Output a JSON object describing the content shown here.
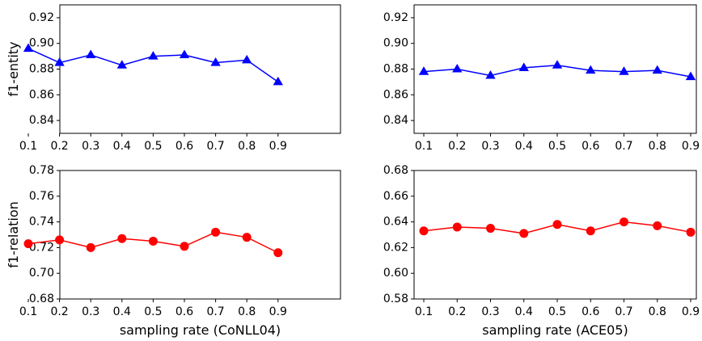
{
  "chart_data": [
    {
      "id": "conll-entity",
      "type": "line",
      "x": [
        0.1,
        0.2,
        0.3,
        0.4,
        0.5,
        0.6,
        0.7,
        0.8,
        0.9
      ],
      "x_tick_labels": [
        "0.1",
        "0.2",
        "0.3",
        "0.4",
        "0.5",
        "0.6",
        "0.7",
        "0.8",
        "0.9"
      ],
      "series": [
        {
          "values": [
            0.896,
            0.885,
            0.891,
            0.883,
            0.89,
            0.891,
            0.885,
            0.887,
            0.87
          ],
          "color": "#0000ff",
          "marker": "triangle"
        }
      ],
      "ylim": [
        0.83,
        0.93
      ],
      "y_ticks": [
        0.84,
        0.86,
        0.88,
        0.9,
        0.92
      ],
      "y_tick_labels": [
        "0.84",
        "0.86",
        "0.88",
        "0.90",
        "0.92"
      ],
      "ylabel": "f1-entity",
      "xlabel": "",
      "grid": false
    },
    {
      "id": "ace-entity",
      "type": "line",
      "x": [
        0.1,
        0.2,
        0.3,
        0.4,
        0.5,
        0.6,
        0.7,
        0.8,
        0.9
      ],
      "x_tick_labels": [
        "0.1",
        "0.2",
        "0.3",
        "0.4",
        "0.5",
        "0.6",
        "0.7",
        "0.8",
        "0.9"
      ],
      "series": [
        {
          "values": [
            0.878,
            0.88,
            0.875,
            0.881,
            0.883,
            0.879,
            0.878,
            0.879,
            0.874
          ],
          "color": "#0000ff",
          "marker": "triangle"
        }
      ],
      "ylim": [
        0.83,
        0.93
      ],
      "y_ticks": [
        0.84,
        0.86,
        0.88,
        0.9,
        0.92
      ],
      "y_tick_labels": [
        "0.84",
        "0.86",
        "0.88",
        "0.90",
        "0.92"
      ],
      "ylabel": "",
      "xlabel": "",
      "grid": false
    },
    {
      "id": "conll-relation",
      "type": "line",
      "x": [
        0.1,
        0.2,
        0.3,
        0.4,
        0.5,
        0.6,
        0.7,
        0.8,
        0.9
      ],
      "x_tick_labels": [
        "0.1",
        "0.2",
        "0.3",
        "0.4",
        "0.5",
        "0.6",
        "0.7",
        "0.8",
        "0.9"
      ],
      "series": [
        {
          "values": [
            0.723,
            0.726,
            0.72,
            0.727,
            0.725,
            0.721,
            0.732,
            0.728,
            0.716
          ],
          "color": "#ff0000",
          "marker": "circle"
        }
      ],
      "ylim": [
        0.68,
        0.78
      ],
      "y_ticks": [
        0.68,
        0.7,
        0.72,
        0.74,
        0.76,
        0.78
      ],
      "y_tick_labels": [
        "0.68",
        "0.70",
        "0.72",
        "0.74",
        "0.76",
        "0.78"
      ],
      "ylabel": "f1-relation",
      "xlabel": "sampling rate (CoNLL04)",
      "grid": false
    },
    {
      "id": "ace-relation",
      "type": "line",
      "x": [
        0.1,
        0.2,
        0.3,
        0.4,
        0.5,
        0.6,
        0.7,
        0.8,
        0.9
      ],
      "x_tick_labels": [
        "0.1",
        "0.2",
        "0.3",
        "0.4",
        "0.5",
        "0.6",
        "0.7",
        "0.8",
        "0.9"
      ],
      "series": [
        {
          "values": [
            0.633,
            0.636,
            0.635,
            0.631,
            0.638,
            0.633,
            0.64,
            0.637,
            0.632
          ],
          "color": "#ff0000",
          "marker": "circle"
        }
      ],
      "ylim": [
        0.58,
        0.68
      ],
      "y_ticks": [
        0.58,
        0.6,
        0.62,
        0.64,
        0.66,
        0.68
      ],
      "y_tick_labels": [
        "0.58",
        "0.60",
        "0.62",
        "0.64",
        "0.66",
        "0.68"
      ],
      "ylabel": "",
      "xlabel": "sampling rate (ACE05)",
      "grid": false
    }
  ]
}
